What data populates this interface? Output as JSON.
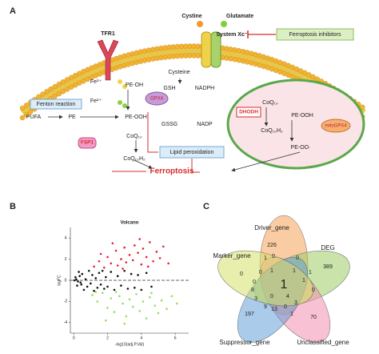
{
  "panel_labels": [
    "A",
    "B",
    "C"
  ],
  "diagram": {
    "cystine": "Cystine",
    "glutamate": "Glutamate",
    "tfr1": "TFR1",
    "system_xc": "System Xc⁻",
    "inhibitors": "Ferroptosis inhibitors",
    "fe3": "Fe³⁺",
    "fe2": "Fe²⁺",
    "fenton": "Fenton reaction",
    "cysteine": "Cysteine",
    "gsh": "GSH",
    "nadph": "NADPH",
    "gssg": "GSSG",
    "nadp": "NADP",
    "pe_oh": "PE-OH",
    "gpx4": "GPX4",
    "pufa": "PUFA",
    "pe": "PE",
    "pe_ooh": "PE-OOH",
    "coq10": "CoQ₁₀",
    "fsp1": "FSP1",
    "coq10h2": "CoQ₁₀H₂",
    "lipid_peroxidation": "Lipid peroxidation",
    "ferroptosis": "Ferroptosis",
    "dhodh": "DHODH",
    "mito_coq10": "CoQ₁₀",
    "mito_coq10h2": "CoQ₁₀H₂",
    "mito_pe_ooh": "PE-OOH",
    "mito_gpx4": "mitoGPX4",
    "mito_pe_oo": "PE-OO·"
  },
  "chart_data": {
    "type": "scatter",
    "title": "Volcano",
    "xlabel": "-log10(adj.P.Val)",
    "ylabel": "logFC",
    "xlim": [
      -0.2,
      6.8
    ],
    "ylim": [
      -5,
      5
    ],
    "xticks": [
      0,
      2,
      4,
      6
    ],
    "yticks": [
      -4,
      -2,
      0,
      2,
      4
    ],
    "hline": 0,
    "series": [
      {
        "color": "#111111",
        "x": [
          0.1,
          0.2,
          0.3,
          0.4,
          0.5,
          0.6,
          0.7,
          0.8,
          0.9,
          1.0,
          1.1,
          1.2,
          1.3,
          1.4,
          1.5,
          1.6,
          1.7,
          1.8,
          1.9,
          2.0,
          2.2,
          2.4,
          2.6,
          2.8,
          3.0,
          3.2,
          3.4,
          3.6,
          3.8,
          4.0,
          4.3,
          4.6,
          0.05,
          0.15,
          0.25,
          0.35,
          0.45
        ],
        "values": [
          0.3,
          -0.5,
          0.8,
          -0.2,
          0.6,
          -0.9,
          0.1,
          -0.6,
          0.9,
          -0.3,
          0.5,
          -1.0,
          0.2,
          -0.7,
          0.7,
          -0.4,
          0.9,
          -0.8,
          0.3,
          -0.6,
          0.8,
          -0.9,
          0.4,
          -0.5,
          0.9,
          -0.8,
          0.6,
          -0.7,
          0.5,
          -0.9,
          0.7,
          -0.6,
          0.0,
          0.1,
          -0.1,
          0.4,
          -0.4
        ]
      },
      {
        "color": "#e8202a",
        "x": [
          1.2,
          1.5,
          1.8,
          2.0,
          2.2,
          2.5,
          2.6,
          2.8,
          3.0,
          3.1,
          3.3,
          3.5,
          3.6,
          3.8,
          4.0,
          4.1,
          4.3,
          4.5,
          4.7,
          4.9,
          5.1,
          5.3,
          5.6,
          2.3,
          3.9,
          1.6,
          4.4,
          2.9
        ],
        "values": [
          1.3,
          1.8,
          1.2,
          2.2,
          1.6,
          2.8,
          1.4,
          2.0,
          3.1,
          1.7,
          2.4,
          1.9,
          3.3,
          2.6,
          1.5,
          3.0,
          2.2,
          3.6,
          1.8,
          2.7,
          2.1,
          3.2,
          1.6,
          3.5,
          3.9,
          2.5,
          1.3,
          1.1
        ]
      },
      {
        "color": "#8fe05a",
        "x": [
          1.1,
          1.4,
          1.7,
          2.0,
          2.2,
          2.4,
          2.7,
          2.9,
          3.1,
          3.3,
          3.5,
          3.7,
          3.9,
          4.1,
          4.3,
          4.5,
          4.8,
          5.0,
          5.2,
          5.5,
          5.8,
          6.1,
          1.9,
          3.0,
          4.6,
          2.5,
          1.3
        ],
        "values": [
          -1.4,
          -2.0,
          -1.2,
          -2.6,
          -1.7,
          -3.0,
          -1.5,
          -2.2,
          -3.4,
          -1.8,
          -2.5,
          -1.3,
          -2.9,
          -2.0,
          -3.6,
          -1.6,
          -2.4,
          -3.1,
          -1.9,
          -2.7,
          -1.5,
          -2.2,
          -3.8,
          -4.1,
          -1.2,
          -1.1,
          -1.1
        ]
      }
    ]
  },
  "venn": {
    "sets": [
      {
        "name": "Driver_gene",
        "color": "#f4a259"
      },
      {
        "name": "DEG",
        "color": "#9ccc65"
      },
      {
        "name": "Unclassified_gene",
        "color": "#f48fb1"
      },
      {
        "name": "Suppressor_gene",
        "color": "#64a0d8"
      },
      {
        "name": "Marker_gene",
        "color": "#d6e26a"
      }
    ],
    "regions": [
      "226",
      "389",
      "70",
      "197",
      "0",
      "1",
      "1",
      "0",
      "0",
      "1",
      "1",
      "0",
      "3",
      "1",
      "0",
      "13",
      "9",
      "3",
      "8",
      "0",
      "0",
      "1",
      "1",
      "4",
      "0"
    ]
  }
}
